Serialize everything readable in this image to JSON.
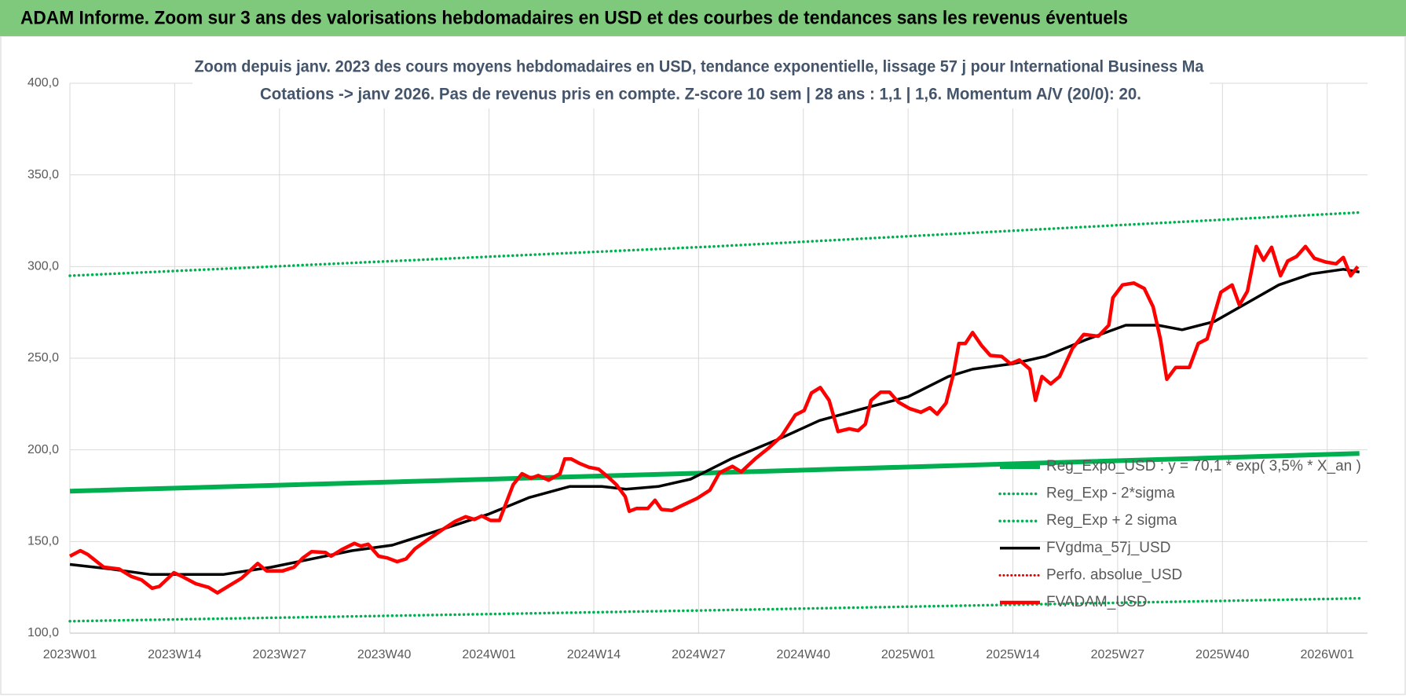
{
  "header": {
    "title": "ADAM Informe. Zoom sur 3 ans des valorisations hebdomadaires en USD et des courbes de tendances sans les revenus éventuels"
  },
  "chart_data": {
    "type": "line",
    "title": "Zoom depuis janv. 2023 des cours moyens hebdomadaires en USD, tendance exponentielle, lissage 57 j pour International Business Ma",
    "subtitle": "Cotations -> janv 2026. Pas de revenus pris en compte. Z-score 10 sem  | 28 ans : 1,1 | 1,6. Momentum A/V (20/0): 20.",
    "xlim": [
      0,
      161
    ],
    "xticks": [
      {
        "value": 0,
        "label": "2023W01"
      },
      {
        "value": 13,
        "label": "2023W14"
      },
      {
        "value": 26,
        "label": "2023W27"
      },
      {
        "value": 39,
        "label": "2023W40"
      },
      {
        "value": 52,
        "label": "2024W01"
      },
      {
        "value": 65,
        "label": "2024W14"
      },
      {
        "value": 78,
        "label": "2024W27"
      },
      {
        "value": 91,
        "label": "2024W40"
      },
      {
        "value": 104,
        "label": "2025W01"
      },
      {
        "value": 117,
        "label": "2025W14"
      },
      {
        "value": 130,
        "label": "2025W27"
      },
      {
        "value": 143,
        "label": "2025W40"
      },
      {
        "value": 156,
        "label": "2026W01"
      }
    ],
    "ylim": [
      100,
      400
    ],
    "yticks": [
      {
        "value": 100,
        "label": "100,0"
      },
      {
        "value": 150,
        "label": "150,0"
      },
      {
        "value": 200,
        "label": "200,0"
      },
      {
        "value": 250,
        "label": "250,0"
      },
      {
        "value": 300,
        "label": "300,0"
      },
      {
        "value": 350,
        "label": "350,0"
      },
      {
        "value": 400,
        "label": "400,0"
      }
    ],
    "grid": true,
    "legend": "right",
    "series": [
      {
        "name": "Reg_Expo_USD : y = 70,1 * exp( 3,5% *  X_an )",
        "color": "#00b050",
        "style": "solid",
        "width": 6,
        "x": [
          0,
          80,
          160
        ],
        "values": [
          177.5,
          187.5,
          198
        ]
      },
      {
        "name": "Reg_Exp - 2*sigma",
        "color": "#00b050",
        "style": "dotted",
        "width": 3.5,
        "x": [
          0,
          80,
          160
        ],
        "values": [
          106.5,
          112.5,
          119
        ]
      },
      {
        "name": "Reg_Exp + 2 sigma",
        "color": "#00b050",
        "style": "dotted",
        "width": 3.5,
        "x": [
          0,
          80,
          160
        ],
        "values": [
          295,
          311,
          329.5
        ]
      },
      {
        "name": "FVgdma_57j_USD",
        "color": "#000000",
        "style": "solid",
        "width": 3.5,
        "x": [
          0,
          5,
          10,
          19,
          25,
          35,
          40,
          45,
          52,
          57,
          62,
          66,
          69,
          73,
          77,
          82,
          88,
          93,
          98,
          104,
          109,
          112,
          117,
          121,
          126,
          131,
          135,
          138,
          142,
          146,
          150,
          154,
          158,
          160
        ],
        "values": [
          137.5,
          135,
          132,
          132,
          136,
          145,
          148,
          155,
          165,
          174,
          180,
          180,
          178.5,
          180,
          184,
          195,
          206,
          216,
          222,
          229,
          240,
          244,
          247,
          251,
          260,
          268,
          268,
          265.5,
          270,
          280,
          290,
          296,
          298.5,
          297
        ]
      },
      {
        "name": "Perfo. absolue_USD",
        "color": "#e00000",
        "style": "dotted",
        "width": 3,
        "x": [],
        "values": []
      },
      {
        "name": "FVADAM_USD",
        "color": "#ff0000",
        "style": "solid",
        "width": 4.5,
        "x": [
          0,
          1.3,
          2.2,
          4.2,
          6.1,
          7.6,
          8.9,
          10.2,
          11.1,
          12.9,
          13.9,
          15.6,
          17.2,
          18.3,
          19.8,
          21.3,
          23.3,
          24.4,
          26.4,
          27.8,
          28.9,
          30,
          31.7,
          32.4,
          33.7,
          35.3,
          36.1,
          37,
          38.3,
          39.4,
          40.6,
          41.7,
          42.8,
          44.4,
          46.4,
          47.8,
          49.1,
          50.2,
          51.1,
          52.2,
          53.3,
          55,
          56.1,
          57.2,
          58.1,
          59.4,
          60.8,
          61.4,
          62.2,
          63.3,
          64.4,
          65.6,
          66.7,
          67.8,
          68.9,
          69.4,
          70.3,
          71.7,
          72.6,
          73.4,
          74.7,
          76.1,
          77.8,
          79.4,
          80.6,
          82.2,
          83.3,
          85,
          86.7,
          88.3,
          90,
          91.1,
          92,
          93.1,
          94.2,
          95.3,
          96.7,
          97.8,
          98.7,
          99.4,
          100.6,
          101.7,
          102.8,
          104.2,
          105.6,
          106.7,
          107.6,
          108.7,
          109.6,
          110.3,
          111.1,
          112,
          113.1,
          114.2,
          115.6,
          116.7,
          117.8,
          119.1,
          119.8,
          120.6,
          121.7,
          122.8,
          124.4,
          125.8,
          127.6,
          128.9,
          129.4,
          130.6,
          132,
          133.3,
          134.4,
          135.3,
          136.1,
          137.2,
          138.9,
          140,
          141.1,
          142.8,
          144.2,
          145.1,
          146.1,
          147.2,
          148.1,
          149.1,
          150.2,
          151.1,
          152.2,
          153.3,
          154.4,
          155.8,
          157.1,
          158,
          158.9,
          159.8
        ],
        "values": [
          142,
          145,
          143,
          136,
          135,
          131,
          129,
          124.5,
          125.5,
          133,
          131,
          127,
          125,
          122,
          126,
          130,
          138,
          134,
          134,
          136,
          141,
          144.5,
          144,
          142,
          145.5,
          149,
          147.5,
          148.5,
          142,
          141,
          139,
          140.5,
          146,
          151,
          157,
          161,
          163.5,
          162,
          164,
          161.5,
          161.5,
          181,
          187,
          184.5,
          186,
          183.5,
          187,
          195,
          195,
          192.5,
          190.5,
          189.5,
          185.5,
          181,
          174.5,
          166.5,
          168,
          168,
          172.5,
          167.5,
          167,
          170,
          173.5,
          178,
          187.5,
          191,
          188,
          195,
          201,
          207.5,
          219,
          221.5,
          231,
          234,
          227,
          210,
          211.5,
          210.5,
          214,
          227,
          231.5,
          231.5,
          226,
          222.5,
          220.5,
          223,
          219.5,
          225.5,
          241,
          258,
          258,
          264,
          257,
          251.5,
          251,
          247,
          249,
          244,
          227,
          240,
          236,
          240,
          255.5,
          263,
          262,
          268,
          283,
          290,
          291,
          288,
          278,
          260.5,
          238.5,
          245,
          245,
          258,
          260.5,
          286,
          290,
          279,
          286.5,
          311,
          303.5,
          310.5,
          295,
          303,
          305.5,
          311,
          304.5,
          302.5,
          301.5,
          305,
          295,
          300
        ]
      }
    ]
  }
}
